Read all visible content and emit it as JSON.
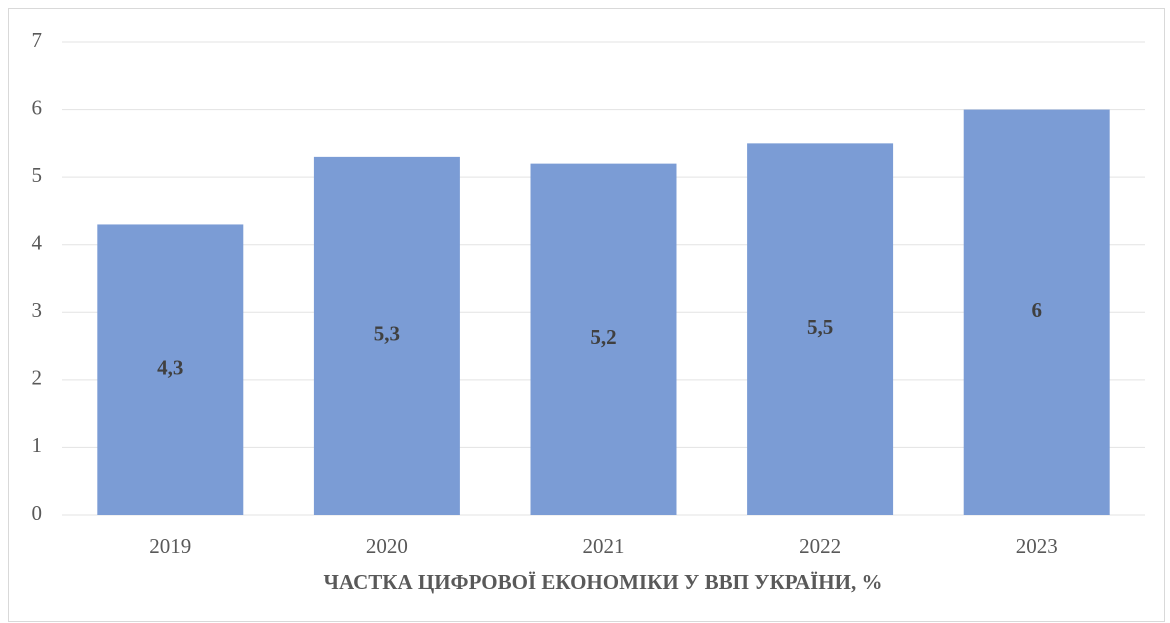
{
  "chart_data": {
    "type": "bar",
    "categories": [
      "2019",
      "2020",
      "2021",
      "2022",
      "2023"
    ],
    "values": [
      4.3,
      5.3,
      5.2,
      5.5,
      6
    ],
    "value_labels": [
      "4,3",
      "5,3",
      "5,2",
      "5,5",
      "6"
    ],
    "color": "#7b9cd5",
    "xlabel": "ЧАСТКА ЦИФРОВОЇ ЕКОНОМІКИ У ВВП УКРАЇНИ, %",
    "ylim": [
      0,
      7
    ],
    "yticks": [
      0,
      1,
      2,
      3,
      4,
      5,
      6,
      7
    ],
    "grid": true
  }
}
